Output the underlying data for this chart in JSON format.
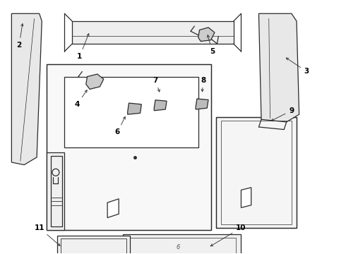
{
  "bg_color": "#ffffff",
  "line_color": "#2a2a2a",
  "lw": 0.9,
  "fs": 7.5
}
